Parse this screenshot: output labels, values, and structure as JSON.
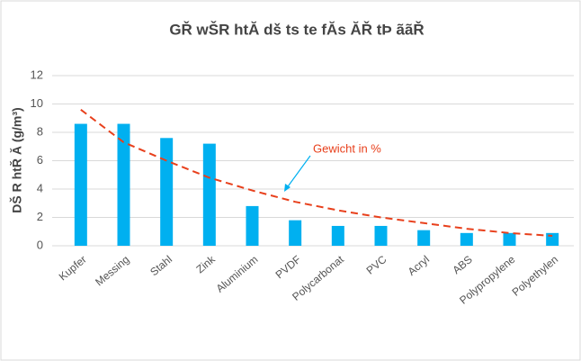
{
  "chart_data": {
    "type": "bar",
    "title": "GŘ wŠR htĂ dš ts te fĂs ĂŘ tÞ ããŘ",
    "y_label": "DŠ R htŘ Ă (g/m³)",
    "categories": [
      "Kupfer",
      "Messing",
      "Stahl",
      "Zink",
      "Aluminium",
      "PVDF",
      "Polycarbonat",
      "PVC",
      "Acryl",
      "ABS",
      "Polypropylene",
      "Polyethylen"
    ],
    "values": [
      8.6,
      8.6,
      7.6,
      7.2,
      2.8,
      1.8,
      1.4,
      1.4,
      1.1,
      0.9,
      0.9,
      0.9
    ],
    "color": "#00b0f0",
    "trend_values": [
      9.6,
      7.3,
      6.0,
      4.8,
      3.9,
      3.1,
      2.5,
      2.0,
      1.6,
      1.2,
      0.9,
      0.7
    ],
    "trend_color": "#e8401c",
    "annotation": "Gewicht in %",
    "ylim": [
      0,
      12
    ],
    "yticks": [
      0,
      2,
      4,
      6,
      8,
      10,
      12
    ],
    "grid": true
  }
}
